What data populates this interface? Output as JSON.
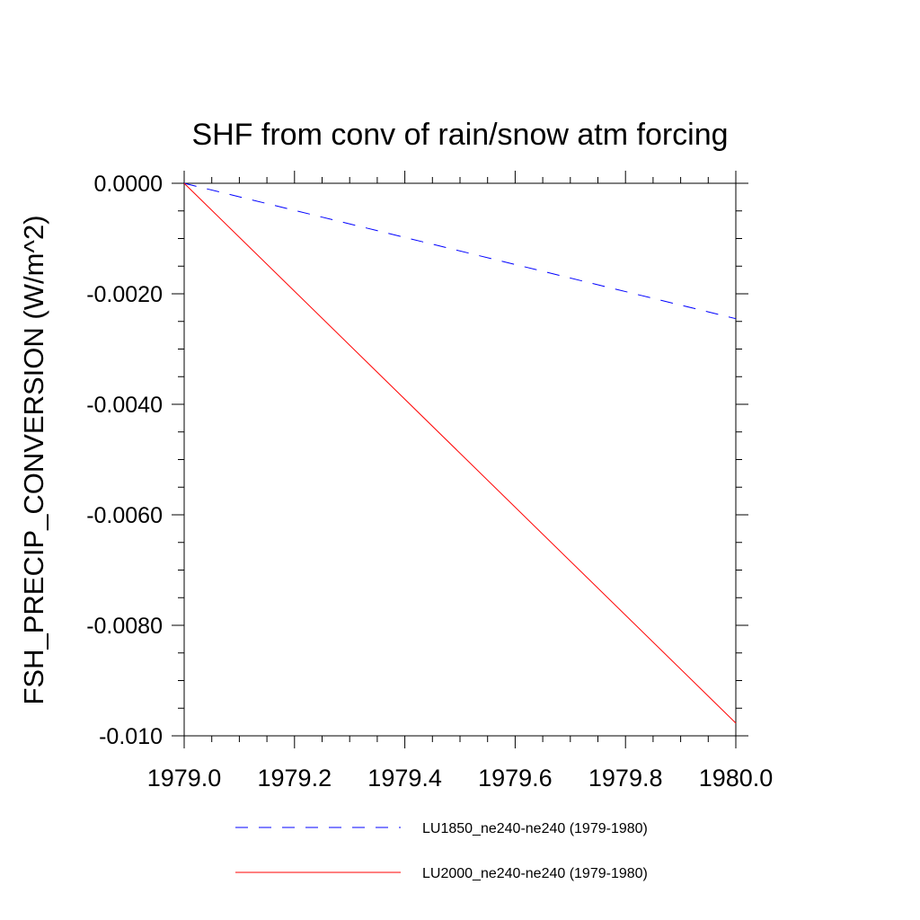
{
  "chart_data": {
    "type": "line",
    "title": "SHF from conv of rain/snow atm forcing",
    "xlabel": "",
    "ylabel": "FSH_PRECIP_CONVERSION  (W/m^2)",
    "xlim": [
      1979.0,
      1980.0
    ],
    "ylim": [
      -0.01,
      0.0
    ],
    "x_ticks": [
      "1979.0",
      "1979.2",
      "1979.4",
      "1979.6",
      "1979.8",
      "1980.0"
    ],
    "y_ticks": [
      "0.0000",
      "-0.0020",
      "-0.0040",
      "-0.0060",
      "-0.0080",
      "-0.010"
    ],
    "grid": false,
    "legend_position": "bottom",
    "series": [
      {
        "name": "LU1850_ne240-ne240 (1979-1980)",
        "color": "#0000ff",
        "style": "dashed",
        "x": [
          1979.0,
          1980.0
        ],
        "y": [
          0.0,
          -0.00245
        ]
      },
      {
        "name": "LU2000_ne240-ne240 (1979-1980)",
        "color": "#ff0000",
        "style": "solid",
        "x": [
          1979.0,
          1980.0
        ],
        "y": [
          0.0,
          -0.00977
        ]
      }
    ]
  }
}
